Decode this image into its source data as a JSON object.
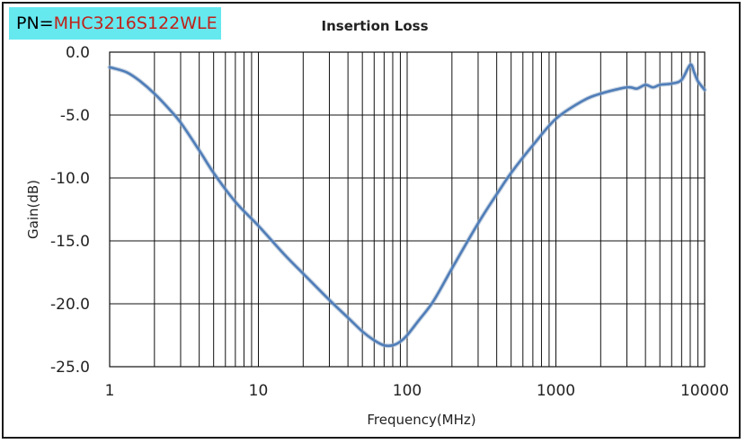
{
  "header": {
    "pn_prefix": "PN=",
    "part_number": "MHC3216S122WLE"
  },
  "chart_data": {
    "type": "line",
    "title": "Insertion Loss",
    "xlabel": "Frequency(MHz)",
    "ylabel": "Gain(dB)",
    "xscale": "log",
    "xlim": [
      1,
      10000
    ],
    "ylim": [
      -25,
      0
    ],
    "grid": true,
    "legend": "none",
    "x_tick_labels": [
      "1",
      "10",
      "100",
      "1000",
      "10000"
    ],
    "y_tick_labels": [
      "0.0",
      "-5.0",
      "-10.0",
      "-15.0",
      "-20.0",
      "-25.0"
    ],
    "line_color": "#4f7db8",
    "series": [
      {
        "x": [
          1,
          1.3,
          1.6,
          2,
          2.5,
          3,
          4,
          5,
          7,
          10,
          15,
          20,
          30,
          40,
          50,
          60,
          70,
          80,
          90,
          100,
          120,
          150,
          200,
          300,
          400,
          500,
          700,
          1000,
          1500,
          2000,
          3000,
          3500,
          4000,
          4500,
          5000,
          6000,
          7000,
          8000,
          8500,
          9000,
          10000
        ],
        "y": [
          -1.2,
          -1.6,
          -2.3,
          -3.3,
          -4.5,
          -5.6,
          -7.8,
          -9.6,
          -11.9,
          -13.8,
          -16.1,
          -17.6,
          -19.7,
          -21.1,
          -22.2,
          -22.9,
          -23.3,
          -23.3,
          -23.0,
          -22.5,
          -21.3,
          -19.8,
          -17.2,
          -13.6,
          -11.3,
          -9.6,
          -7.4,
          -5.3,
          -3.9,
          -3.3,
          -2.8,
          -2.9,
          -2.6,
          -2.8,
          -2.6,
          -2.5,
          -2.2,
          -1.0,
          -1.6,
          -2.3,
          -3.0
        ]
      }
    ]
  }
}
